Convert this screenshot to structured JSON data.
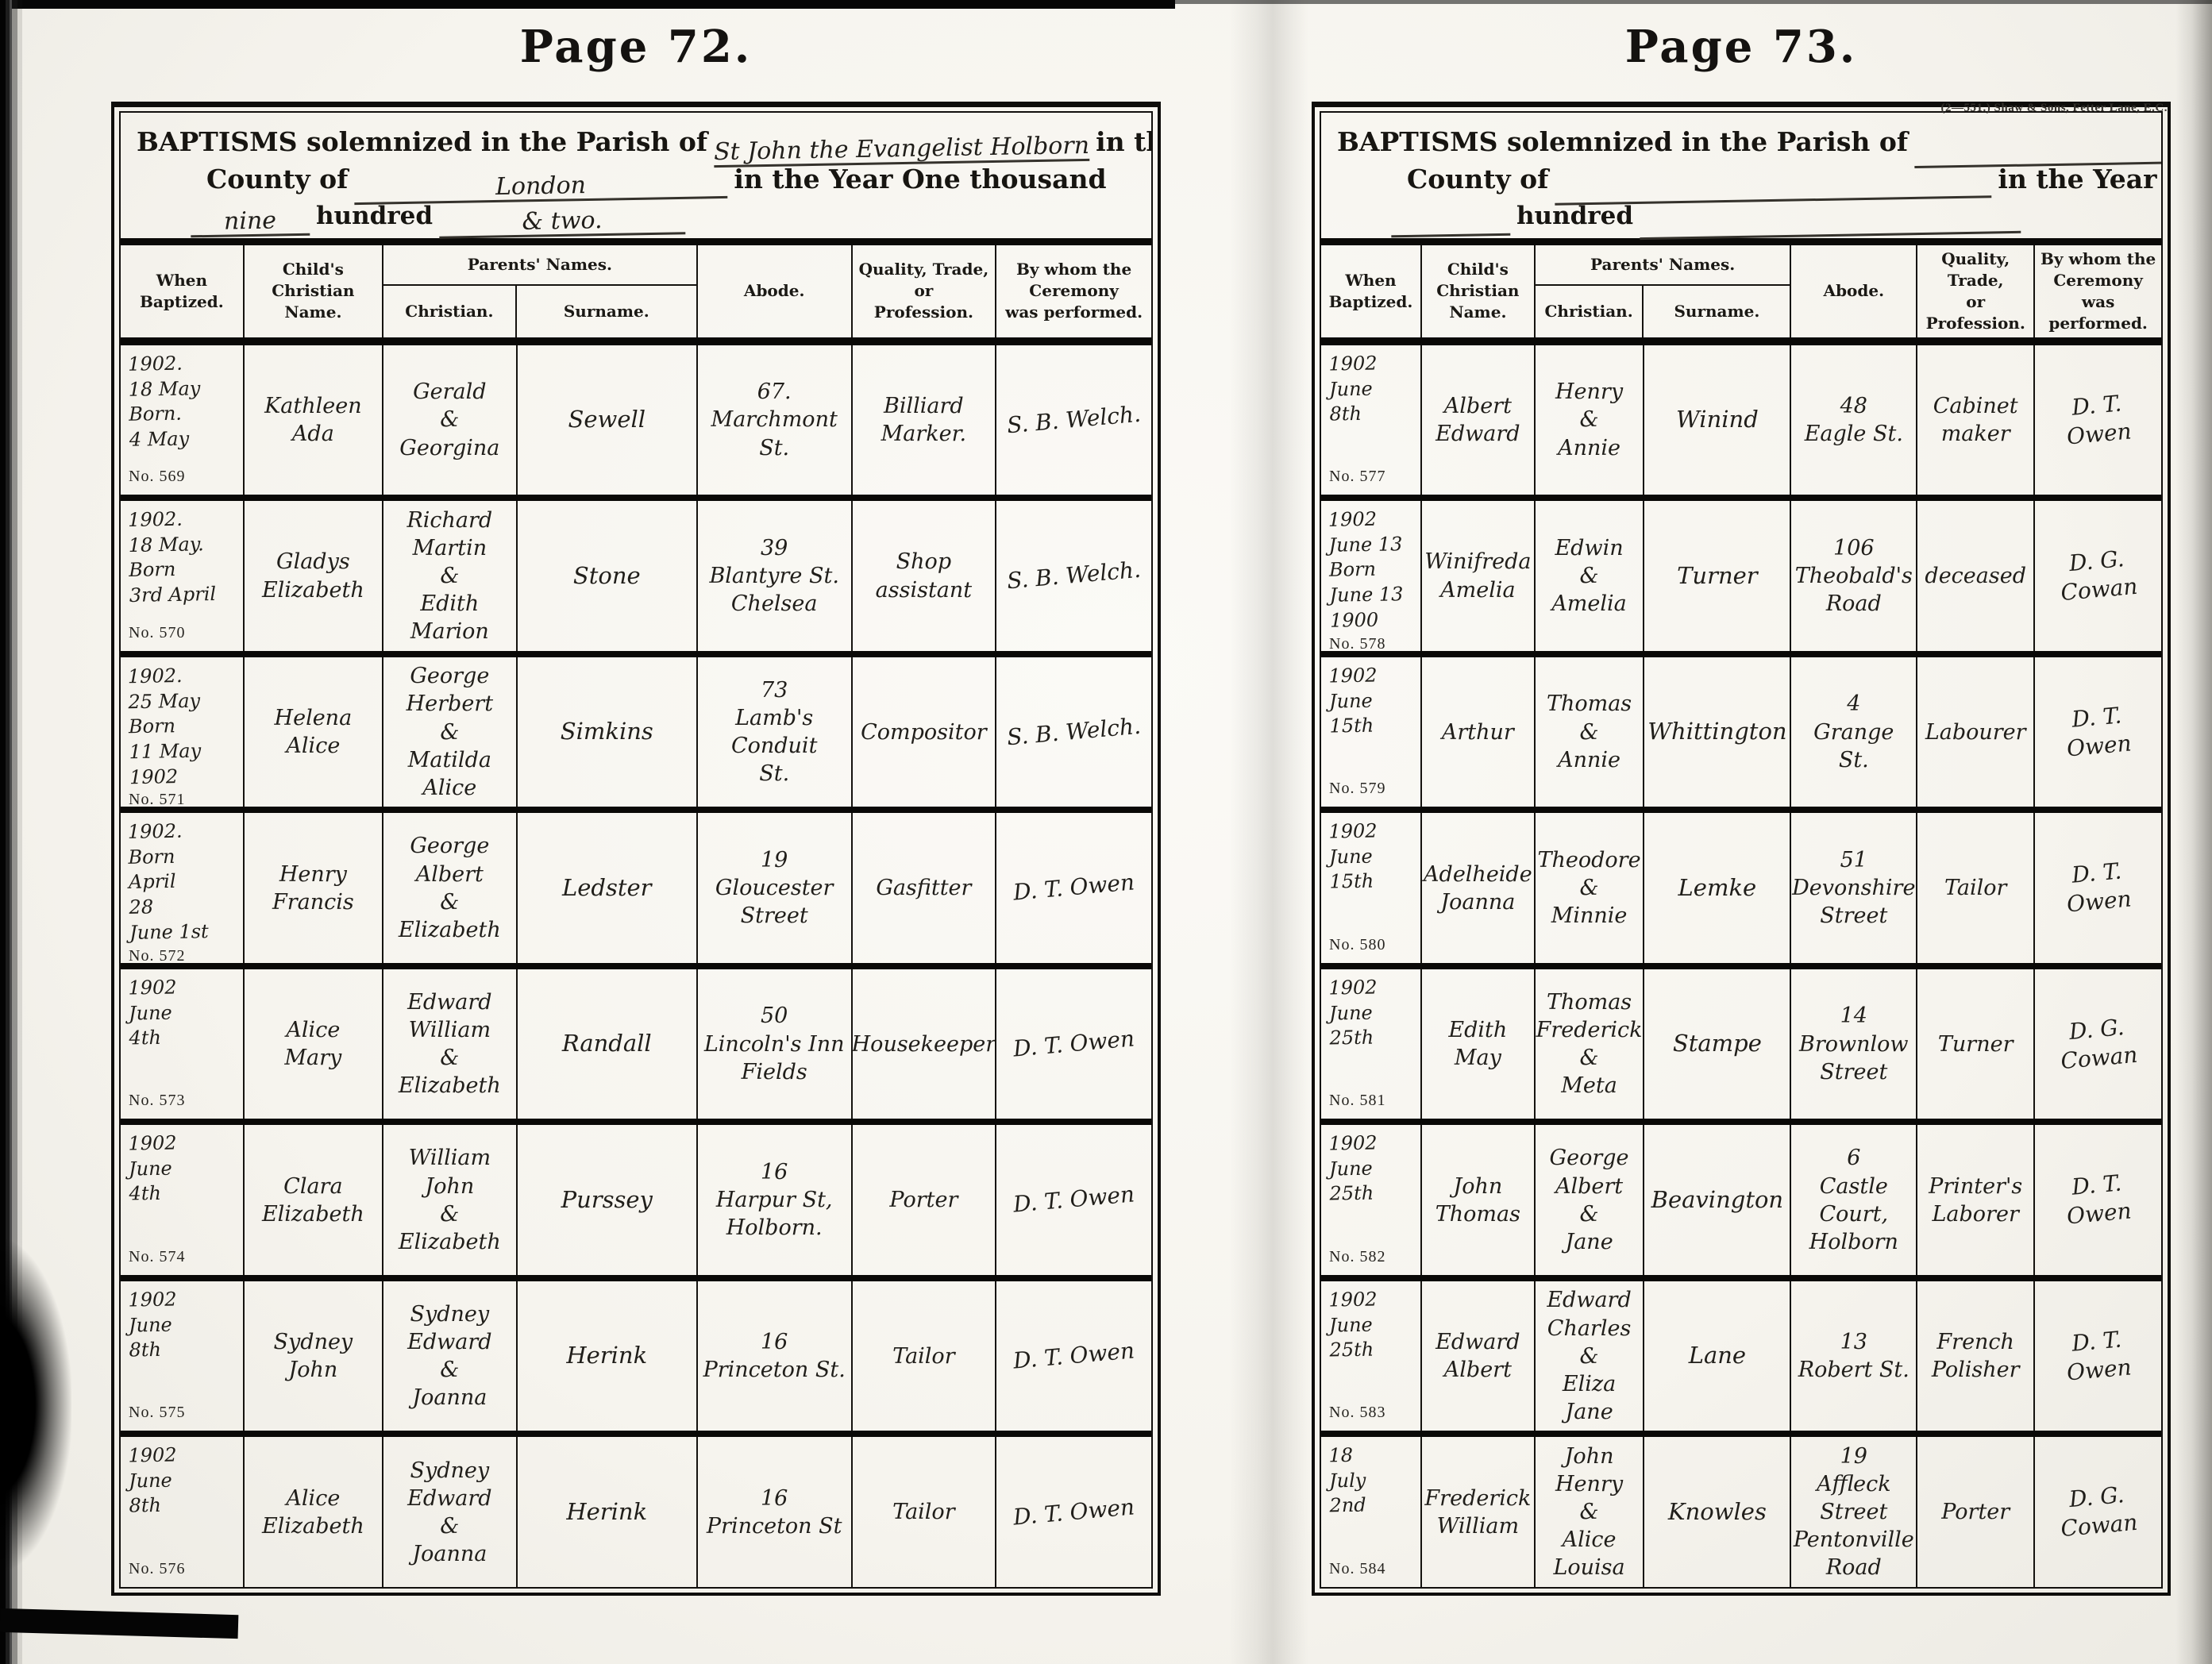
{
  "colors": {
    "paper": "#f8f6f1",
    "ink": "#201e1a",
    "printed": "#1b1915",
    "rule": "#0a0907"
  },
  "printer_note": "(2—551.)   Shaw & Sons, Fetter Lane, E.C.",
  "preamble": {
    "parish_label": "BAPTISMS solemnized in the Parish of",
    "in_the": "in the",
    "county_label": "County of",
    "year_label": "in the Year One thousand",
    "hundred_label": "hundred"
  },
  "headers": {
    "when": "When\nBaptized.",
    "child": "Child's\nChristian Name.",
    "parents": "Parents' Names.",
    "christian": "Christian.",
    "surname": "Surname.",
    "abode": "Abode.",
    "quality": "Quality, Trade,\nor\nProfession.",
    "by_whom": "By whom the\nCeremony\nwas performed."
  },
  "left": {
    "page_title": "Page 72.",
    "parish_fill": "St John the Evangelist Holborn",
    "county_fill": "London",
    "thousand_fill": "nine",
    "hundred_fill": "& two.",
    "rows": [
      {
        "when": "1902.\n18 May\nBorn.\n4 May",
        "no": "No. 569",
        "child": "Kathleen\nAda",
        "christian": "Gerald\n&\nGeorgina",
        "surname": "Sewell",
        "abode": "67.\nMarchmont\nSt.",
        "quality": "Billiard\nMarker.",
        "by": "S. B. Welch."
      },
      {
        "when": "1902.\n18 May.\nBorn\n3rd April",
        "no": "No. 570",
        "child": "Gladys\nElizabeth",
        "christian": "Richard\nMartin\n&\nEdith\nMarion",
        "surname": "Stone",
        "abode": "39\nBlantyre St.\nChelsea",
        "quality": "Shop\nassistant",
        "by": "S. B. Welch."
      },
      {
        "when": "1902.\n25 May\nBorn\n11 May 1902",
        "no": "No. 571",
        "child": "Helena\nAlice",
        "christian": "George\nHerbert\n&\nMatilda\nAlice",
        "surname": "Simkins",
        "abode": "73\nLamb's Conduit\nSt.",
        "quality": "Compositor",
        "by": "S. B. Welch."
      },
      {
        "when": "1902.\nBorn\nApril\n28\nJune 1st",
        "no": "No. 572",
        "child": "Henry\nFrancis",
        "christian": "George\nAlbert\n&\nElizabeth",
        "surname": "Ledster",
        "abode": "19\nGloucester\nStreet",
        "quality": "Gasfitter",
        "by": "D. T. Owen"
      },
      {
        "when": "1902\nJune\n4th",
        "no": "No. 573",
        "child": "Alice\nMary",
        "christian": "Edward\nWilliam\n&\nElizabeth",
        "surname": "Randall",
        "abode": "50\nLincoln's Inn Fields",
        "quality": "Housekeeper",
        "by": "D. T. Owen"
      },
      {
        "when": "1902\nJune\n4th",
        "no": "No. 574",
        "child": "Clara\nElizabeth",
        "christian": "William\nJohn\n&\nElizabeth",
        "surname": "Purssey",
        "abode": "16\nHarpur St,\nHolborn.",
        "quality": "Porter",
        "by": "D. T. Owen"
      },
      {
        "when": "1902\nJune\n8th",
        "no": "No. 575",
        "child": "Sydney\nJohn",
        "christian": "Sydney\nEdward\n&\nJoanna",
        "surname": "Herink",
        "abode": "16\nPrinceton St.",
        "quality": "Tailor",
        "by": "D. T. Owen"
      },
      {
        "when": "1902\nJune\n8th",
        "no": "No. 576",
        "child": "Alice\nElizabeth",
        "christian": "Sydney\nEdward\n&\nJoanna",
        "surname": "Herink",
        "abode": "16\nPrinceton St",
        "quality": "Tailor",
        "by": "D. T. Owen"
      }
    ]
  },
  "right": {
    "page_title": "Page 73.",
    "parish_fill": "",
    "county_fill": "",
    "thousand_fill": "",
    "hundred_fill": "",
    "rows": [
      {
        "when": "1902\nJune\n8th",
        "no": "No. 577",
        "child": "Albert\nEdward",
        "christian": "Henry\n&\nAnnie",
        "surname": "Winind",
        "abode": "48\nEagle St.",
        "quality": "Cabinet\nmaker",
        "by": "D. T. Owen"
      },
      {
        "when": "1902\nJune 13\nBorn\nJune 13\n1900",
        "no": "No. 578",
        "child": "Winifreda\nAmelia",
        "christian": "Edwin\n&\nAmelia",
        "surname": "Turner",
        "abode": "106\nTheobald's\nRoad",
        "quality": "deceased",
        "by": "D. G. Cowan"
      },
      {
        "when": "1902\nJune\n15th",
        "no": "No. 579",
        "child": "Arthur",
        "christian": "Thomas\n&\nAnnie",
        "surname": "Whittington",
        "abode": "4\nGrange St.",
        "quality": "Labourer",
        "by": "D. T. Owen"
      },
      {
        "when": "1902\nJune\n15th",
        "no": "No. 580",
        "child": "Adelheide\nJoanna",
        "christian": "Theodore\n&\nMinnie",
        "surname": "Lemke",
        "abode": "51\nDevonshire\nStreet",
        "quality": "Tailor",
        "by": "D. T. Owen"
      },
      {
        "when": "1902\nJune\n25th",
        "no": "No. 581",
        "child": "Edith\nMay",
        "christian": "Thomas\nFrederick\n&\nMeta",
        "surname": "Stampe",
        "abode": "14\nBrownlow\nStreet",
        "quality": "Turner",
        "by": "D. G. Cowan"
      },
      {
        "when": "1902\nJune\n25th",
        "no": "No. 582",
        "child": "John\nThomas",
        "christian": "George\nAlbert\n&\nJane",
        "surname": "Beavington",
        "abode": "6\nCastle\nCourt,\nHolborn",
        "quality": "Printer's\nLaborer",
        "by": "D. T. Owen"
      },
      {
        "when": "1902\nJune\n25th",
        "no": "No. 583",
        "child": "Edward\nAlbert",
        "christian": "Edward\nCharles\n&\nEliza Jane",
        "surname": "Lane",
        "abode": "13\nRobert St.",
        "quality": "French\nPolisher",
        "by": "D. T. Owen"
      },
      {
        "when": "18\nJuly\n2nd",
        "no": "No. 584",
        "child": "Frederick\nWilliam",
        "christian": "John\nHenry\n&\nAlice\nLouisa",
        "surname": "Knowles",
        "abode": "19\nAffleck\nStreet\nPentonville\nRoad",
        "quality": "Porter",
        "by": "D. G. Cowan"
      }
    ]
  }
}
